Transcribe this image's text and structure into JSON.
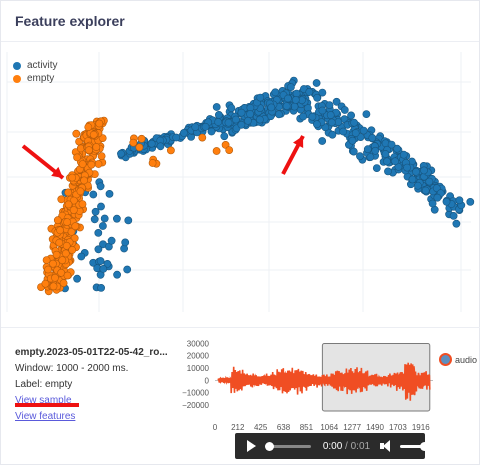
{
  "header": {
    "title": "Feature explorer"
  },
  "scatter": {
    "legend": [
      {
        "label": "activity",
        "color": "#1f77b4"
      },
      {
        "label": "empty",
        "color": "#ff7f0e"
      }
    ]
  },
  "sample": {
    "name": "empty.2023-05-01T22-05-42_ro...",
    "window": "Window: 1000 - 2000 ms.",
    "label": "Label: empty",
    "view_sample": "View sample",
    "view_features": "View features"
  },
  "chart_data": {
    "type": "line",
    "series": [
      {
        "name": "audio",
        "color": "#f04e23"
      }
    ],
    "legend": "audio",
    "y_ticks": [
      "30000",
      "20000",
      "10000",
      "0",
      "−10000",
      "−20000"
    ],
    "x_ticks": [
      "0",
      "212",
      "425",
      "638",
      "851",
      "1064",
      "1277",
      "1490",
      "1703",
      "1916"
    ],
    "ylim": [
      -25000,
      32000
    ],
    "xlim": [
      0,
      2030
    ],
    "highlight_window": [
      1000,
      2000
    ]
  },
  "player": {
    "current": "0:00",
    "separator": " / ",
    "duration": "0:01",
    "progress": 0,
    "volume": 1
  }
}
